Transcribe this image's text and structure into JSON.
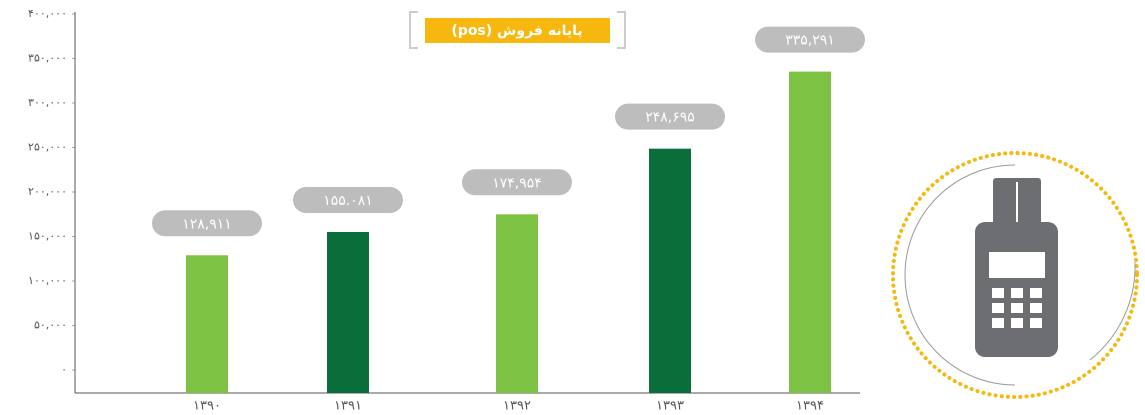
{
  "chart_data": {
    "type": "bar",
    "title": "پایانه فروش (pos)",
    "categories": [
      "۱۳۹۰",
      "۱۳۹۱",
      "۱۳۹۲",
      "۱۳۹۳",
      "۱۳۹۴"
    ],
    "values": [
      128911,
      155081,
      174954,
      248695,
      335291
    ],
    "value_labels": [
      "۱۲۸,۹۱۱",
      "۱۵۵.۰۸۱",
      "۱۷۴,۹۵۴",
      "۲۴۸,۶۹۵",
      "۳۳۵,۲۹۱"
    ],
    "colors": [
      "#7dc242",
      "#0a6e3a",
      "#7dc242",
      "#0a6e3a",
      "#7dc242"
    ],
    "ylim": [
      0,
      400000
    ],
    "yticks": [
      {
        "value": 0,
        "label": "۰"
      },
      {
        "value": 50000,
        "label": "۵۰,۰۰۰"
      },
      {
        "value": 100000,
        "label": "۱۰۰,۰۰۰"
      },
      {
        "value": 150000,
        "label": "۱۵۰,۰۰۰"
      },
      {
        "value": 200000,
        "label": "۲۰۰,۰۰۰"
      },
      {
        "value": 250000,
        "label": "۲۵۰,۰۰۰"
      },
      {
        "value": 300000,
        "label": "۳۰۰,۰۰۰"
      },
      {
        "value": 350000,
        "label": "۳۵۰,۰۰۰"
      },
      {
        "value": 400000,
        "label": "۴۰۰,۰۰۰"
      }
    ],
    "grid": false
  }
}
